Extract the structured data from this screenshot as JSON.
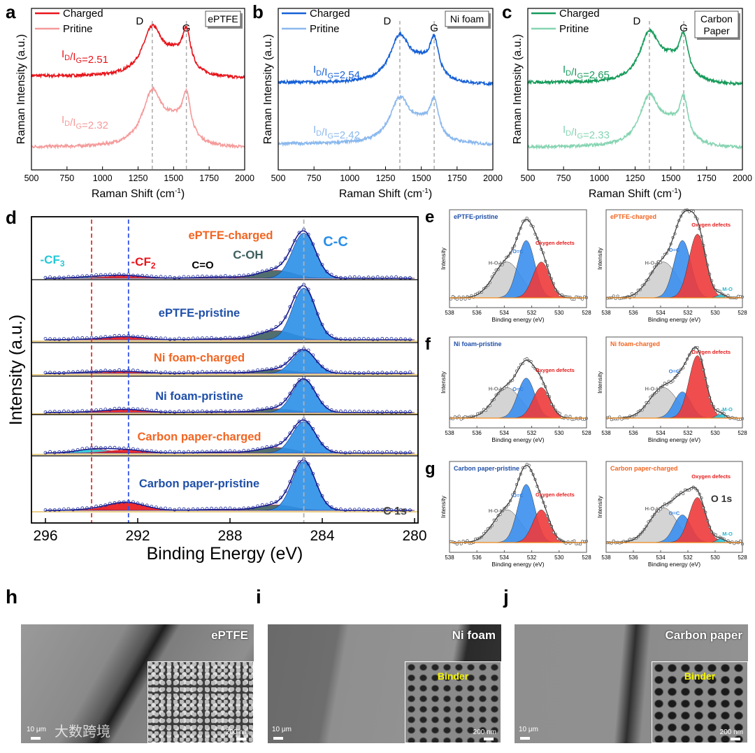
{
  "chart_data": [
    {
      "type": "line",
      "panel": "a",
      "title": "ePTFE",
      "xlabel": "Raman Shift (cm",
      "xlabel_sup": "-1",
      "xlabel_end": ")",
      "ylabel": "Raman Intensity (a.u.)",
      "xlim": [
        500,
        2000
      ],
      "xticks": [
        500,
        750,
        1000,
        1250,
        1500,
        1750,
        2000
      ],
      "peak_labels": [
        {
          "text": "D",
          "x": 1350
        },
        {
          "text": "G",
          "x": 1590
        }
      ],
      "series": [
        {
          "name": "Charged",
          "color": "#e8141b",
          "offset": 0.58,
          "amp": 0.29,
          "ratio": "2.51"
        },
        {
          "name": "Pritine",
          "color": "#f59a9a",
          "offset": 0.14,
          "amp": 0.33,
          "ratio": "2.32"
        }
      ]
    },
    {
      "type": "line",
      "panel": "b",
      "title": "Ni foam",
      "xlabel": "Raman Shift (cm",
      "xlabel_sup": "-1",
      "xlabel_end": ")",
      "ylabel": "Raman Intensity (a.u.)",
      "xlim": [
        500,
        2000
      ],
      "xticks": [
        500,
        750,
        1000,
        1250,
        1500,
        1750,
        2000
      ],
      "peak_labels": [
        {
          "text": "D",
          "x": 1350
        },
        {
          "text": "G",
          "x": 1590
        }
      ],
      "series": [
        {
          "name": "Charged",
          "color": "#1560d6",
          "offset": 0.54,
          "amp": 0.28,
          "ratio": "2.54"
        },
        {
          "name": "Pritine",
          "color": "#8ab8ee",
          "offset": 0.16,
          "amp": 0.27,
          "ratio": "2.42"
        }
      ]
    },
    {
      "type": "line",
      "panel": "c",
      "title": "Carbon Paper",
      "xlabel": "Raman Shift (cm",
      "xlabel_sup": "-1",
      "xlabel_end": ")",
      "ylabel": "Raman Intensity (a.u.)",
      "xlim": [
        500,
        2000
      ],
      "xticks": [
        500,
        750,
        1000,
        1250,
        1500,
        1750,
        2000
      ],
      "peak_labels": [
        {
          "text": "D",
          "x": 1350
        },
        {
          "text": "G",
          "x": 1590
        }
      ],
      "series": [
        {
          "name": "Charged",
          "color": "#169b5a",
          "offset": 0.54,
          "amp": 0.3,
          "ratio": "2.65"
        },
        {
          "name": "Pritine",
          "color": "#86d4b2",
          "offset": 0.14,
          "amp": 0.3,
          "ratio": "2.33"
        }
      ]
    },
    {
      "type": "line",
      "panel": "d",
      "xlabel": "Binding Energy (eV)",
      "ylabel": "Intensity (a.u.)",
      "xlim": [
        296,
        280
      ],
      "xticks": [
        296,
        292,
        288,
        284,
        280
      ],
      "core_level": "C 1s",
      "components": [
        {
          "name": "C-C",
          "center": 284.8,
          "color": "#2b8fe8",
          "label_color": "#2b8fe8"
        },
        {
          "name": "C-OH",
          "center": 286.0,
          "color": "#3e5f5f",
          "label_color": "#3e5f5f"
        },
        {
          "name": "C=O",
          "center": 288.5,
          "color": "#222222",
          "label_color": "#000000"
        },
        {
          "name": "-CF",
          "sub": "2",
          "center": 292.4,
          "color": "#e8141b",
          "label_color": "#e8141b"
        },
        {
          "name": "-CF",
          "sub": "3",
          "center": 293.9,
          "color": "#22c8d8",
          "label_color": "#22c8d8"
        }
      ],
      "reference_lines": [
        {
          "x": 294.0,
          "color": "#e83030"
        },
        {
          "x": 292.4,
          "color": "#3050e8"
        },
        {
          "x": 284.8,
          "color": "#b0b0b0"
        }
      ],
      "series": [
        {
          "name": "ePTFE-charged",
          "color": "#f26522",
          "offset": 0.3,
          "cc": 1.48,
          "coh": 0.26,
          "co": 0.04,
          "cf2": 0.09,
          "cf3": 0.05
        },
        {
          "name": "ePTFE-pristine",
          "color": "#1f4fa8",
          "offset": 0.2,
          "cc": 1.69,
          "coh": 0.3,
          "co": 0.03,
          "cf2": 0.1,
          "cf3": 0.02
        },
        {
          "name": "Ni foam-charged",
          "color": "#f26522",
          "offset": 0.15,
          "cc": 0.75,
          "coh": 0.12,
          "co": 0.02,
          "cf2": 0.06,
          "cf3": 0.04
        },
        {
          "name": "Ni foam-pristine",
          "color": "#1f4fa8",
          "offset": 0.15,
          "cc": 1.07,
          "coh": 0.12,
          "co": 0.02,
          "cf2": 0.1,
          "cf3": 0.02
        },
        {
          "name": "Carbon paper-charged",
          "color": "#f26522",
          "offset": 0.15,
          "cc": 1.03,
          "coh": 0.18,
          "co": 0.03,
          "cf2": 0.1,
          "cf3": 0.12
        },
        {
          "name": "Carbon paper-pristine",
          "color": "#1f4fa8",
          "offset": 0.2,
          "cc": 1.6,
          "coh": 0.18,
          "co": 0.03,
          "cf2": 0.26,
          "cf3": 0.03
        }
      ]
    },
    {
      "type": "line",
      "panel_group": [
        "e",
        "f",
        "g"
      ],
      "xlabel": "Binding energy (eV)",
      "ylabel": "Intensity",
      "core_level": "O 1s",
      "xlim": [
        538,
        528
      ],
      "xticks": [
        538,
        536,
        534,
        532,
        530,
        528
      ],
      "components": [
        {
          "name": "H-O-H",
          "center": 533.8,
          "color": "#cfcfcf",
          "label_color": "#777777"
        },
        {
          "name": "O=C",
          "center": 532.4,
          "color": "#3b8ff0",
          "label_color": "#2d7de0"
        },
        {
          "name": "Oxygen defects",
          "center": 531.3,
          "color": "#ee3b3b",
          "label_color": "#e41a1a"
        },
        {
          "name": "M-O",
          "center": 529.6,
          "color": "#2ec8e0",
          "label_color": "#25b8d0"
        }
      ],
      "panels": [
        {
          "letter": "e",
          "title": "ePTFE-pristine",
          "title_color": "#1f4fa8",
          "amps": [
            0.45,
            0.72,
            0.45,
            0
          ]
        },
        {
          "letter": "",
          "title": "ePTFE-charged",
          "title_color": "#f26522",
          "amps": [
            0.45,
            0.72,
            0.8,
            0.04
          ]
        },
        {
          "letter": "f",
          "title": "Ni foam-pristine",
          "title_color": "#1f4fa8",
          "amps": [
            0.42,
            0.55,
            0.42,
            0
          ]
        },
        {
          "letter": "",
          "title": "Ni foam-charged",
          "title_color": "#f26522",
          "amps": [
            0.42,
            0.36,
            0.86,
            0.06
          ]
        },
        {
          "letter": "g",
          "title": "Carbon paper-pristine",
          "title_color": "#1f4fa8",
          "amps": [
            0.45,
            0.8,
            0.45,
            0
          ]
        },
        {
          "letter": "",
          "title": "Carbon paper-charged",
          "title_color": "#f26522",
          "amps": [
            0.48,
            0.38,
            0.62,
            0.05
          ]
        }
      ]
    }
  ],
  "ratio_symbol": {
    "I": "I",
    "D": "D",
    "slash": "/I",
    "G": "G",
    "eq": "="
  },
  "sem": [
    {
      "letter": "h",
      "title": "ePTFE",
      "scale_main": "10 μm",
      "scale_inset": "200 nm",
      "inset_label": ""
    },
    {
      "letter": "i",
      "title": "Ni foam",
      "scale_main": "10 μm",
      "scale_inset": "200 nm",
      "inset_label": "Binder"
    },
    {
      "letter": "j",
      "title": "Carbon paper",
      "scale_main": "10 μm",
      "scale_inset": "200 nm",
      "inset_label": "Binder"
    }
  ],
  "watermark": "大数跨境"
}
